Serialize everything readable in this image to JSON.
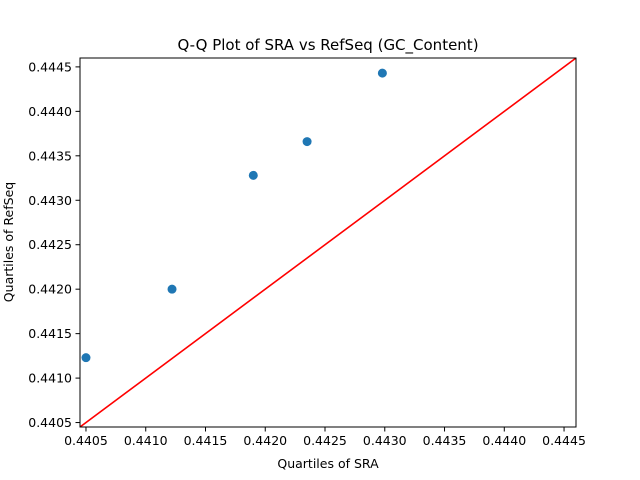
{
  "chart_data": {
    "type": "scatter",
    "title": "Q-Q Plot of SRA vs RefSeq (GC_Content)",
    "xlabel": "Quartiles of SRA",
    "ylabel": "Quartiles of RefSeq",
    "xlim": [
      0.44045,
      0.4446
    ],
    "ylim": [
      0.44045,
      0.4446
    ],
    "xticks": [
      "0.4405",
      "0.4410",
      "0.4415",
      "0.4420",
      "0.4425",
      "0.4430",
      "0.4435",
      "0.4440",
      "0.4445"
    ],
    "yticks": [
      "0.4405",
      "0.4410",
      "0.4415",
      "0.4420",
      "0.4425",
      "0.4430",
      "0.4435",
      "0.4440",
      "0.4445"
    ],
    "grid": false,
    "series": [
      {
        "type": "scatter",
        "color": "#1f77b4",
        "points": [
          {
            "x": 0.4405,
            "y": 0.44123
          },
          {
            "x": 0.44122,
            "y": 0.442
          },
          {
            "x": 0.4419,
            "y": 0.44328
          },
          {
            "x": 0.44235,
            "y": 0.44366
          },
          {
            "x": 0.44298,
            "y": 0.44443
          }
        ]
      },
      {
        "type": "line",
        "color": "#ff0000",
        "points": [
          {
            "x": 0.44045,
            "y": 0.44045
          },
          {
            "x": 0.4446,
            "y": 0.4446
          }
        ]
      }
    ]
  }
}
